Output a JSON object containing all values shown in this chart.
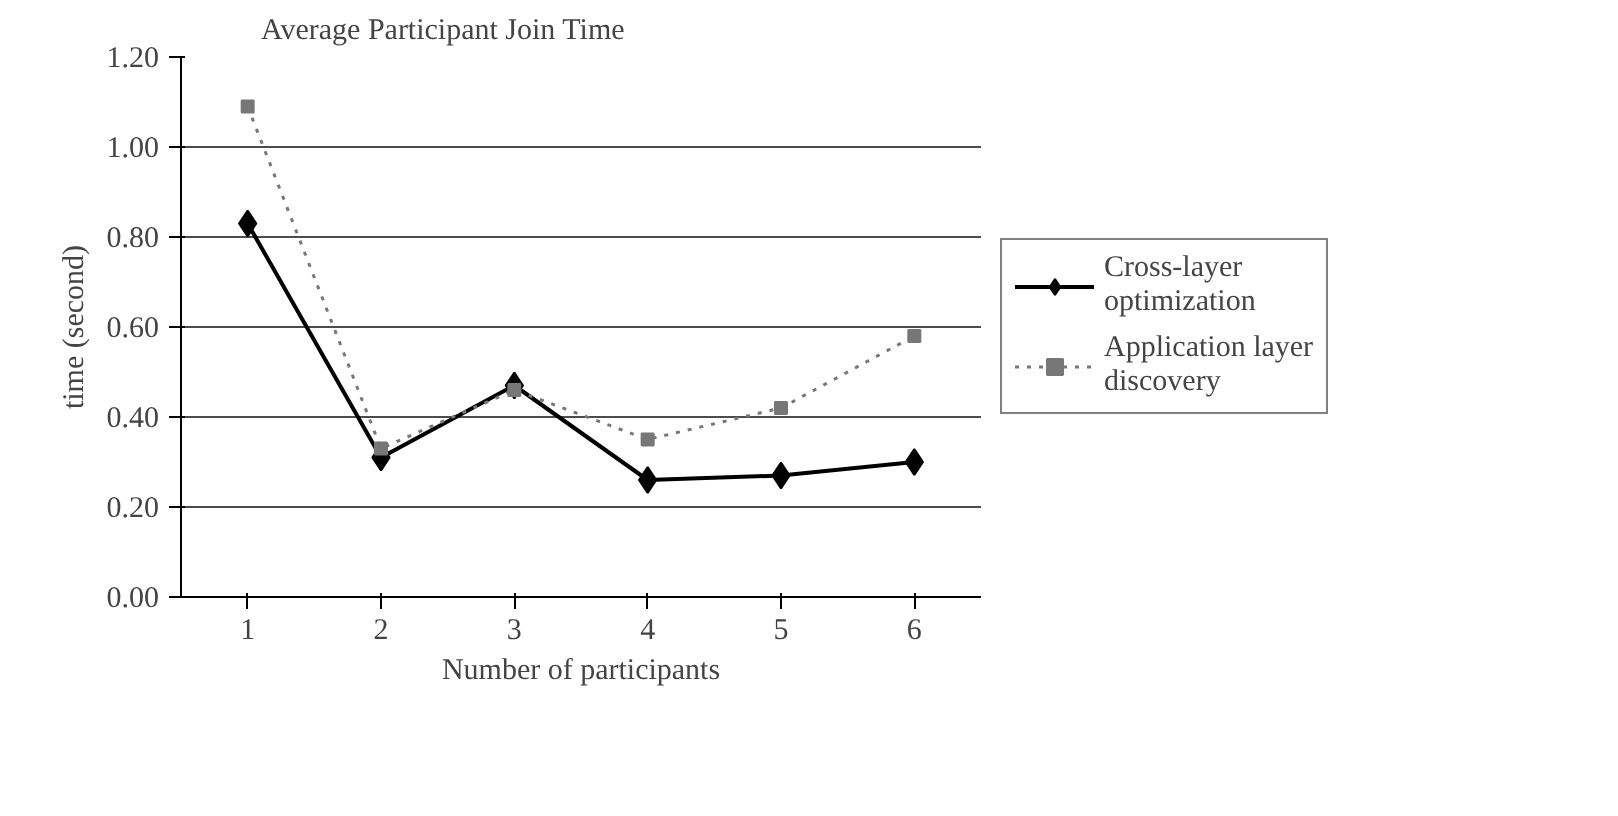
{
  "chart_data": {
    "type": "line",
    "title": "Average Participant Join Time",
    "xlabel": "Number of participants",
    "ylabel": "time (second)",
    "categories": [
      "1",
      "2",
      "3",
      "4",
      "5",
      "6"
    ],
    "series": [
      {
        "name": "Cross-layer optimization",
        "color": "#000000",
        "marker": "diamond",
        "line_style": "solid",
        "values": [
          0.83,
          0.31,
          0.47,
          0.26,
          0.27,
          0.3
        ]
      },
      {
        "name": "Application layer discovery",
        "color": "#777777",
        "marker": "square",
        "line_style": "dotted",
        "values": [
          1.09,
          0.33,
          0.46,
          0.35,
          0.42,
          0.58
        ]
      }
    ],
    "ylim": [
      0,
      1.2
    ],
    "yticks": [
      {
        "value": 0,
        "label": "0.00"
      },
      {
        "value": 0.2,
        "label": "0.20"
      },
      {
        "value": 0.4,
        "label": "0.40"
      },
      {
        "value": 0.6,
        "label": "0.60"
      },
      {
        "value": 0.8,
        "label": "0.80"
      },
      {
        "value": 1.0,
        "label": "1.00"
      },
      {
        "value": 1.2,
        "label": "1.20"
      }
    ],
    "grid": "y",
    "legend": "right"
  }
}
